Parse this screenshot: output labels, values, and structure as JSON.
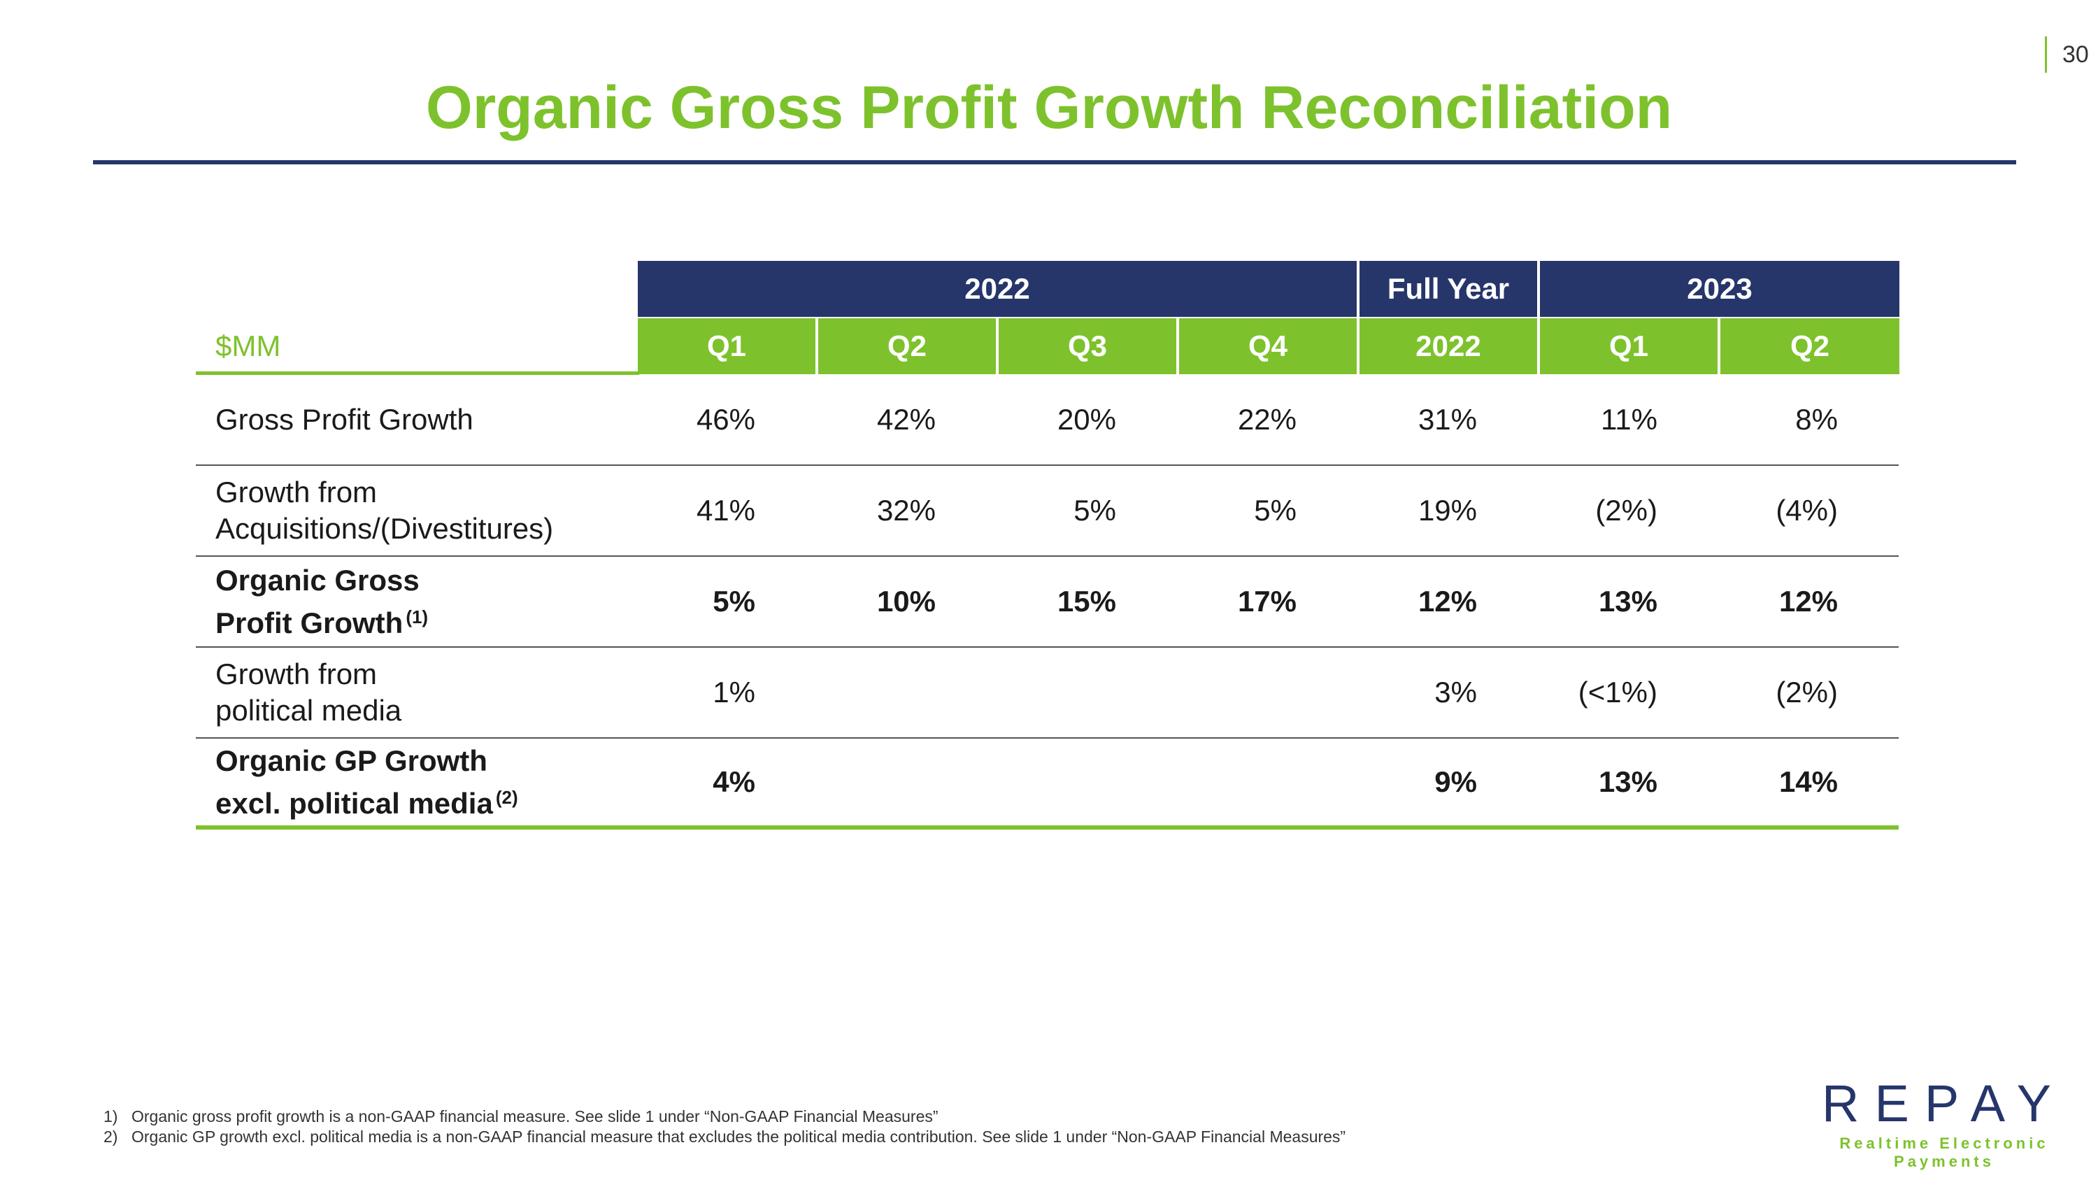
{
  "page_number": "30",
  "title": "Organic Gross Profit Growth Reconciliation",
  "table": {
    "unit_label": "$MM",
    "group_headers": [
      "2022",
      "Full Year",
      "2023"
    ],
    "sub_headers": [
      "Q1",
      "Q2",
      "Q3",
      "Q4",
      "2022",
      "Q1",
      "Q2"
    ],
    "rows": [
      {
        "label_line1": "Gross Profit Growth",
        "label_line2": "",
        "footnote": "",
        "bold": false,
        "values": [
          "46%",
          "42%",
          "20%",
          "22%",
          "31%",
          "11%",
          "8%"
        ]
      },
      {
        "label_line1": "Growth from",
        "label_line2": "Acquisitions/(Divestitures)",
        "footnote": "",
        "bold": false,
        "values": [
          "41%",
          "32%",
          "5%",
          "5%",
          "19%",
          "(2%)",
          "(4%)"
        ]
      },
      {
        "label_line1": "Organic Gross",
        "label_line2": "Profit Growth",
        "footnote": "(1)",
        "bold": true,
        "values": [
          "5%",
          "10%",
          "15%",
          "17%",
          "12%",
          "13%",
          "12%"
        ]
      },
      {
        "label_line1": "Growth from",
        "label_line2": "political media",
        "footnote": "",
        "bold": false,
        "values": [
          "1%",
          "",
          "",
          "",
          "3%",
          "(<1%)",
          "(2%)"
        ]
      },
      {
        "label_line1": "Organic GP Growth",
        "label_line2": "excl. political media",
        "footnote": "(2)",
        "bold": true,
        "values": [
          "4%",
          "",
          "",
          "",
          "9%",
          "13%",
          "14%"
        ]
      }
    ]
  },
  "footnotes": [
    {
      "num": "1)",
      "text": "Organic gross profit growth is a non-GAAP financial measure. See slide 1 under “Non-GAAP Financial Measures”"
    },
    {
      "num": "2)",
      "text": "Organic GP growth excl. political media is a non-GAAP financial measure that excludes the political media contribution. See slide 1 under “Non-GAAP Financial Measures”"
    }
  ],
  "logo": {
    "wordmark": "REPAY",
    "tagline": "Realtime Electronic Payments"
  },
  "colors": {
    "brand_green": "#7dc22c",
    "brand_navy": "#26366b"
  }
}
